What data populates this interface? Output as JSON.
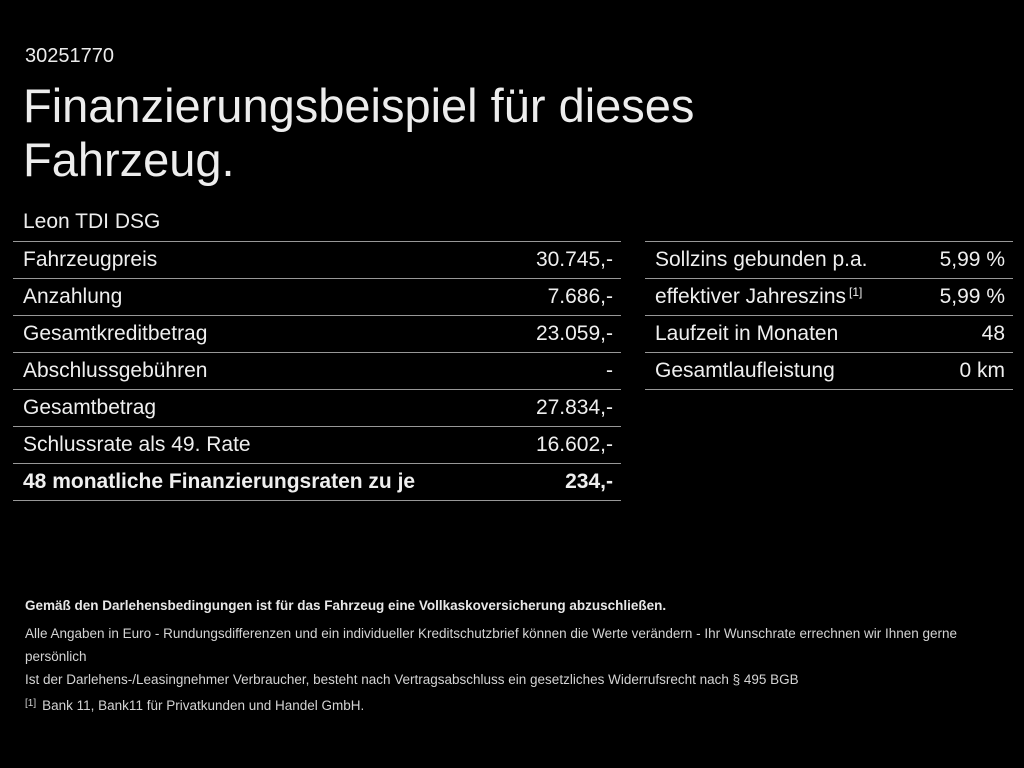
{
  "page": {
    "vehicle_id": "30251770",
    "title_line1": "Finanzierungsbeispiel für dieses",
    "title_line2": "Fahrzeug.",
    "model": "Leon TDI DSG"
  },
  "left_table": {
    "rows": [
      {
        "label": "Fahrzeugpreis",
        "value": "30.745,-"
      },
      {
        "label": "Anzahlung",
        "value": "7.686,-"
      },
      {
        "label": "Gesamtkreditbetrag",
        "value": "23.059,-"
      },
      {
        "label": "Abschlussgebühren",
        "value": "-"
      },
      {
        "label": "Gesamtbetrag",
        "value": "27.834,-"
      },
      {
        "label": "Schlussrate als 49. Rate",
        "value": "16.602,-"
      },
      {
        "label": "48 monatliche Finanzierungsraten zu je",
        "value": "234,-"
      }
    ]
  },
  "right_table": {
    "rows": [
      {
        "label": "Sollzins gebunden p.a.",
        "value": "5,99 %"
      },
      {
        "label": "effektiver Jahreszins",
        "label_sup": "[1]",
        "value": "5,99 %"
      },
      {
        "label": "Laufzeit in Monaten",
        "value": "48"
      },
      {
        "label": "Gesamtlaufleistung",
        "value": "0 km"
      }
    ]
  },
  "footer": {
    "bold_note": "Gemäß den Darlehensbedingungen ist für das Fahrzeug eine Vollkaskoversicherung abzuschließen.",
    "note_line1": "Alle Angaben in Euro - Rundungsdifferenzen und ein individueller Kreditschutzbrief können die Werte verändern - Ihr Wunschrate errechnen wir Ihnen gerne persönlich",
    "note_line2": "Ist der Darlehens-/Leasingnehmer Verbraucher, besteht nach Vertragsabschluss ein gesetzliches Widerrufsrecht nach § 495 BGB",
    "footnote_marker": "[1]",
    "footnote_text": "Bank 11, Bank11 für Privatkunden und Handel GmbH."
  },
  "colors": {
    "background": "#000000",
    "text": "#efefef",
    "divider": "#989898"
  }
}
